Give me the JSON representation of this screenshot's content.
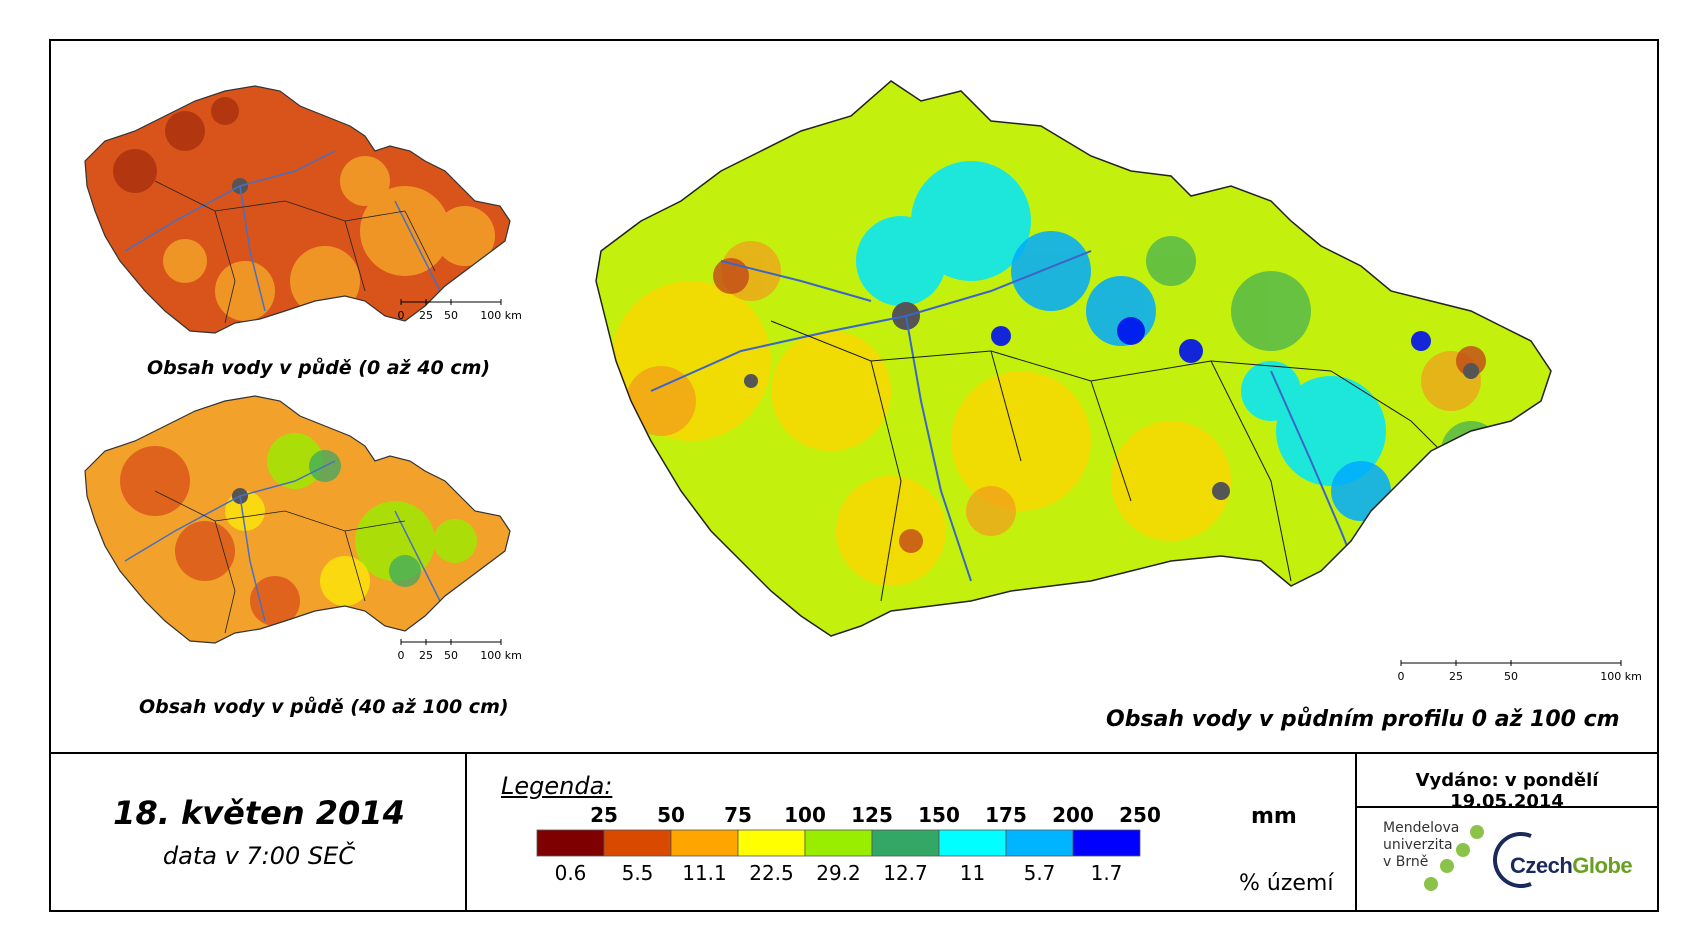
{
  "maps": {
    "top_small": {
      "caption": "Obsah vody v půdě (0 až 40 cm)"
    },
    "bottom_small": {
      "caption": "Obsah vody v půdě (40 až 100 cm)"
    },
    "large": {
      "caption": "Obsah vody v půdním profilu 0 až 100 cm"
    }
  },
  "scale_labels": [
    "0",
    "25",
    "50",
    "100 km"
  ],
  "date": {
    "title": "18. květen 2014",
    "subtitle": "data v 7:00 SEČ"
  },
  "legend": {
    "title": "Legenda:",
    "mm_thresholds": [
      "25",
      "50",
      "75",
      "100",
      "125",
      "150",
      "175",
      "200",
      "250"
    ],
    "mm_unit": "mm",
    "percent_unit": "% území",
    "classes": [
      {
        "color": "#7f0000",
        "percent": "0.6"
      },
      {
        "color": "#d94a00",
        "percent": "5.5"
      },
      {
        "color": "#ffa500",
        "percent": "11.1"
      },
      {
        "color": "#ffff00",
        "percent": "22.5"
      },
      {
        "color": "#99ee00",
        "percent": "29.2"
      },
      {
        "color": "#33a766",
        "percent": "12.7"
      },
      {
        "color": "#00ffff",
        "percent": "11"
      },
      {
        "color": "#00b4ff",
        "percent": "5.7"
      },
      {
        "color": "#0000ff",
        "percent": "1.7"
      }
    ]
  },
  "publication": {
    "text": "Vydáno: v pondělí 19.05.2014"
  },
  "logos": {
    "mendel": [
      "Mendelova",
      "univerzita",
      "v Brně"
    ],
    "czechglobe": {
      "part1": "Czech",
      "part2": "Globe"
    }
  }
}
